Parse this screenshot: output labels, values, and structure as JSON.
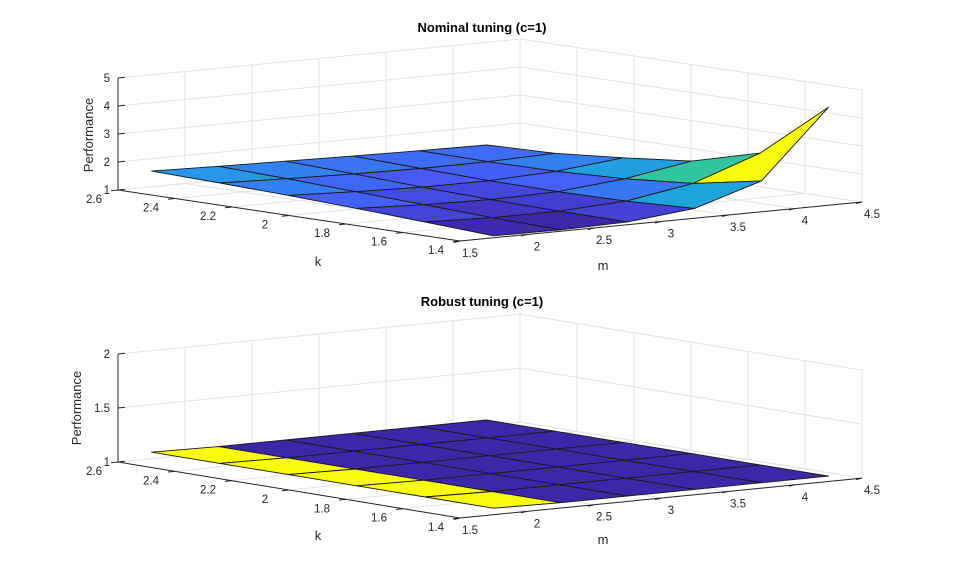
{
  "figure": {
    "background": "#ffffff"
  },
  "chart_data": [
    {
      "type": "surface",
      "title": "Nominal tuning (c=1)",
      "xlabel": "m",
      "ylabel": "k",
      "zlabel": "Performance",
      "xlim": [
        1.5,
        4.5
      ],
      "ylim": [
        1.4,
        2.6
      ],
      "zlim": [
        1,
        5
      ],
      "xticks": [
        "1.5",
        "2",
        "2.5",
        "3",
        "3.5",
        "4",
        "4.5"
      ],
      "yticks": [
        "1.4",
        "1.6",
        "1.8",
        "2",
        "2.2",
        "2.4",
        "2.6"
      ],
      "zticks": [
        "1",
        "2",
        "3",
        "4",
        "5"
      ],
      "grid": true,
      "colormap": "parula",
      "edge_color": "#1a1a1a",
      "x": [
        1.75,
        2.25,
        2.75,
        3.25,
        3.75,
        4.25
      ],
      "y": [
        2.6,
        2.36,
        2.12,
        1.88,
        1.64,
        1.4
      ],
      "z": [
        [
          1.56,
          1.5,
          1.45,
          1.4,
          1.36,
          1.33
        ],
        [
          1.5,
          1.42,
          1.36,
          1.32,
          1.33,
          1.4
        ],
        [
          1.42,
          1.32,
          1.25,
          1.25,
          1.35,
          1.6
        ],
        [
          1.32,
          1.22,
          1.17,
          1.22,
          1.45,
          1.85
        ],
        [
          1.2,
          1.12,
          1.12,
          1.25,
          1.65,
          2.5
        ],
        [
          1.07,
          1.05,
          1.1,
          1.35,
          2.1,
          4.5
        ]
      ]
    },
    {
      "type": "surface",
      "title": "Robust tuning (c=1)",
      "xlabel": "m",
      "ylabel": "k",
      "zlabel": "Performance",
      "xlim": [
        1.5,
        4.5
      ],
      "ylim": [
        1.4,
        2.6
      ],
      "zlim": [
        1,
        2
      ],
      "xticks": [
        "1.5",
        "2",
        "2.5",
        "3",
        "3.5",
        "4",
        "4.5"
      ],
      "yticks": [
        "1.4",
        "1.6",
        "1.8",
        "2",
        "2.2",
        "2.4",
        "2.6"
      ],
      "zticks": [
        "1",
        "1.5",
        "2"
      ],
      "grid": true,
      "colormap": "parula",
      "edge_color": "#1a1a1a",
      "x": [
        1.75,
        2.25,
        2.75,
        3.25,
        3.75,
        4.25
      ],
      "y": [
        2.6,
        2.36,
        2.12,
        1.88,
        1.64,
        1.4
      ],
      "z": [
        [
          1.06,
          1.05,
          1.05,
          1.05,
          1.05,
          1.05
        ],
        [
          1.06,
          1.05,
          1.05,
          1.05,
          1.05,
          1.05
        ],
        [
          1.06,
          1.05,
          1.05,
          1.05,
          1.05,
          1.05
        ],
        [
          1.06,
          1.05,
          1.05,
          1.05,
          1.05,
          1.05
        ],
        [
          1.06,
          1.05,
          1.05,
          1.05,
          1.05,
          1.05
        ],
        [
          1.06,
          1.05,
          1.05,
          1.05,
          1.05,
          1.05
        ]
      ]
    }
  ]
}
